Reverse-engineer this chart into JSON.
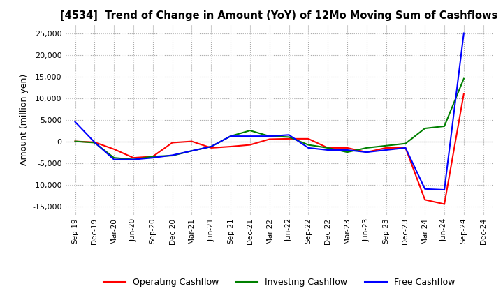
{
  "title": "[4534]  Trend of Change in Amount (YoY) of 12Mo Moving Sum of Cashflows",
  "ylabel": "Amount (million yen)",
  "ylim": [
    -17000,
    27000
  ],
  "yticks": [
    -15000,
    -10000,
    -5000,
    0,
    5000,
    10000,
    15000,
    20000,
    25000
  ],
  "x_labels": [
    "Sep-19",
    "Dec-19",
    "Mar-20",
    "Jun-20",
    "Sep-20",
    "Dec-20",
    "Mar-21",
    "Jun-21",
    "Sep-21",
    "Dec-21",
    "Mar-22",
    "Jun-22",
    "Sep-22",
    "Dec-22",
    "Mar-23",
    "Jun-23",
    "Sep-23",
    "Dec-23",
    "Mar-24",
    "Jun-24",
    "Sep-24",
    "Dec-24"
  ],
  "operating_cashflow": [
    0,
    -200,
    -1800,
    -3800,
    -3500,
    -300,
    0,
    -1500,
    -1200,
    -800,
    500,
    600,
    600,
    -1500,
    -1500,
    -2500,
    -1500,
    -1500,
    -13500,
    -14500,
    11000,
    null
  ],
  "investing_cashflow": [
    0,
    -300,
    -3800,
    -4200,
    -3500,
    -3300,
    -2200,
    -1200,
    1200,
    2500,
    1200,
    1000,
    -800,
    -1500,
    -2500,
    -1500,
    -1000,
    -500,
    3000,
    3500,
    14500,
    null
  ],
  "free_cashflow": [
    4500,
    -200,
    -4200,
    -4200,
    -3800,
    -3200,
    -2200,
    -1200,
    1200,
    1200,
    1200,
    1500,
    -1500,
    -2000,
    -2000,
    -2500,
    -2000,
    -1500,
    -11000,
    -11200,
    25000,
    null
  ],
  "colors": {
    "operating": "#ff0000",
    "investing": "#008000",
    "free": "#0000ff"
  },
  "background_color": "#ffffff",
  "grid_color": "#aaaaaa",
  "grid_linestyle": ":",
  "axhline_color": "#888888"
}
